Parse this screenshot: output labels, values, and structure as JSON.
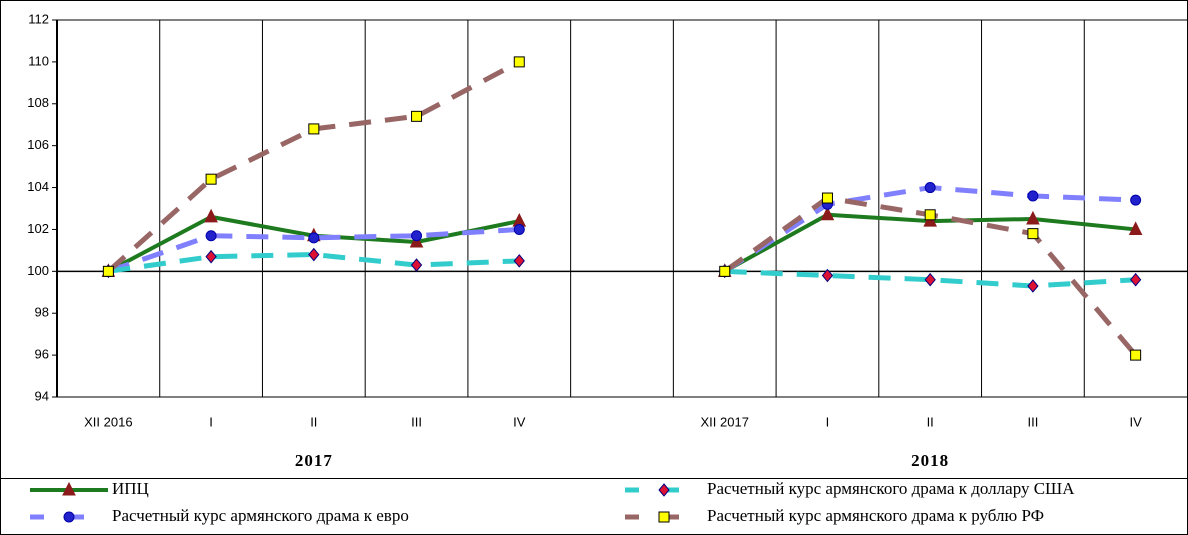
{
  "chart_data": {
    "type": "line",
    "categories": [
      "XII 2016",
      "I",
      "II",
      "III",
      "IV",
      null,
      "XII 2017",
      "I",
      "II",
      "III",
      "IV"
    ],
    "annotations": [
      "2017",
      "2018"
    ],
    "ylim": [
      94,
      112
    ],
    "yticks": [
      94,
      96,
      98,
      100,
      102,
      104,
      106,
      108,
      110,
      112
    ],
    "xaxis_crosses": 100,
    "series": [
      {
        "name": "ИПЦ",
        "color": "#1e7a1e",
        "dashed": false,
        "marker": "triangle",
        "marker_color": "#8b1a1a",
        "values": [
          100,
          102.6,
          101.7,
          101.4,
          102.4,
          null,
          100,
          102.7,
          102.4,
          102.5,
          102.0
        ]
      },
      {
        "name": "Расчетный курс армянского драма к евро",
        "color": "#8080ff",
        "dashed": true,
        "marker": "circle",
        "marker_color": "#2222cc",
        "values": [
          100,
          101.7,
          101.6,
          101.7,
          102.0,
          null,
          100,
          103.2,
          104.0,
          103.6,
          103.4
        ]
      },
      {
        "name": "Расчетный курс армянского драма к доллару США",
        "color": "#33cccc",
        "dashed": true,
        "marker": "diamond",
        "marker_color": "#dd1133",
        "values": [
          100,
          100.7,
          100.8,
          100.3,
          100.5,
          null,
          100,
          99.8,
          99.6,
          99.3,
          99.6
        ]
      },
      {
        "name": "Расчетный курс армянского драма к рублю РФ",
        "color": "#996666",
        "dashed": true,
        "marker": "square",
        "marker_color": "#ffff00",
        "values": [
          100,
          104.4,
          106.8,
          107.4,
          110.0,
          null,
          100,
          103.5,
          102.7,
          101.8,
          96.0
        ]
      }
    ]
  }
}
